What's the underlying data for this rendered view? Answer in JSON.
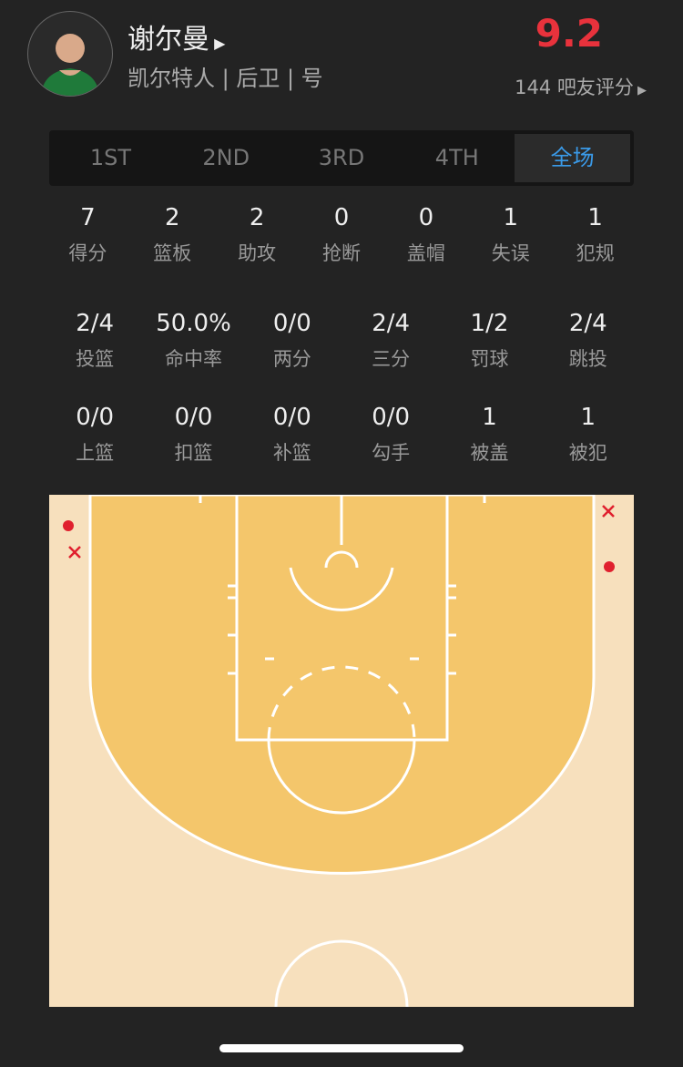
{
  "player": {
    "name": "谢尔曼",
    "info": "凯尔特人 | 后卫 | 号",
    "rating": "9.2",
    "raters": "144 吧友评分"
  },
  "tabs": [
    {
      "label": "1ST"
    },
    {
      "label": "2ND"
    },
    {
      "label": "3RD"
    },
    {
      "label": "4TH"
    },
    {
      "label": "全场",
      "active": true
    }
  ],
  "stats1": [
    {
      "v": "7",
      "l": "得分"
    },
    {
      "v": "2",
      "l": "篮板"
    },
    {
      "v": "2",
      "l": "助攻"
    },
    {
      "v": "0",
      "l": "抢断"
    },
    {
      "v": "0",
      "l": "盖帽"
    },
    {
      "v": "1",
      "l": "失误"
    },
    {
      "v": "1",
      "l": "犯规"
    }
  ],
  "stats2": [
    {
      "v": "2/4",
      "l": "投篮"
    },
    {
      "v": "50.0%",
      "l": "命中率"
    },
    {
      "v": "0/0",
      "l": "两分"
    },
    {
      "v": "2/4",
      "l": "三分"
    },
    {
      "v": "1/2",
      "l": "罚球"
    },
    {
      "v": "2/4",
      "l": "跳投"
    }
  ],
  "stats3": [
    {
      "v": "0/0",
      "l": "上篮"
    },
    {
      "v": "0/0",
      "l": "扣篮"
    },
    {
      "v": "0/0",
      "l": "补篮"
    },
    {
      "v": "0/0",
      "l": "勾手"
    },
    {
      "v": "1",
      "l": "被盖"
    },
    {
      "v": "1",
      "l": "被犯"
    }
  ],
  "shots": [
    {
      "made": true,
      "side": "left-corner-upper"
    },
    {
      "made": false,
      "side": "left-corner-lower"
    },
    {
      "made": false,
      "side": "right-corner-upper"
    },
    {
      "made": true,
      "side": "right-corner-lower"
    }
  ],
  "colors": {
    "accent": "#3a9ae8",
    "rating": "#e8323c",
    "made": "#e0202e",
    "paint": "#f4c66b",
    "court": "#f7e0bd"
  }
}
